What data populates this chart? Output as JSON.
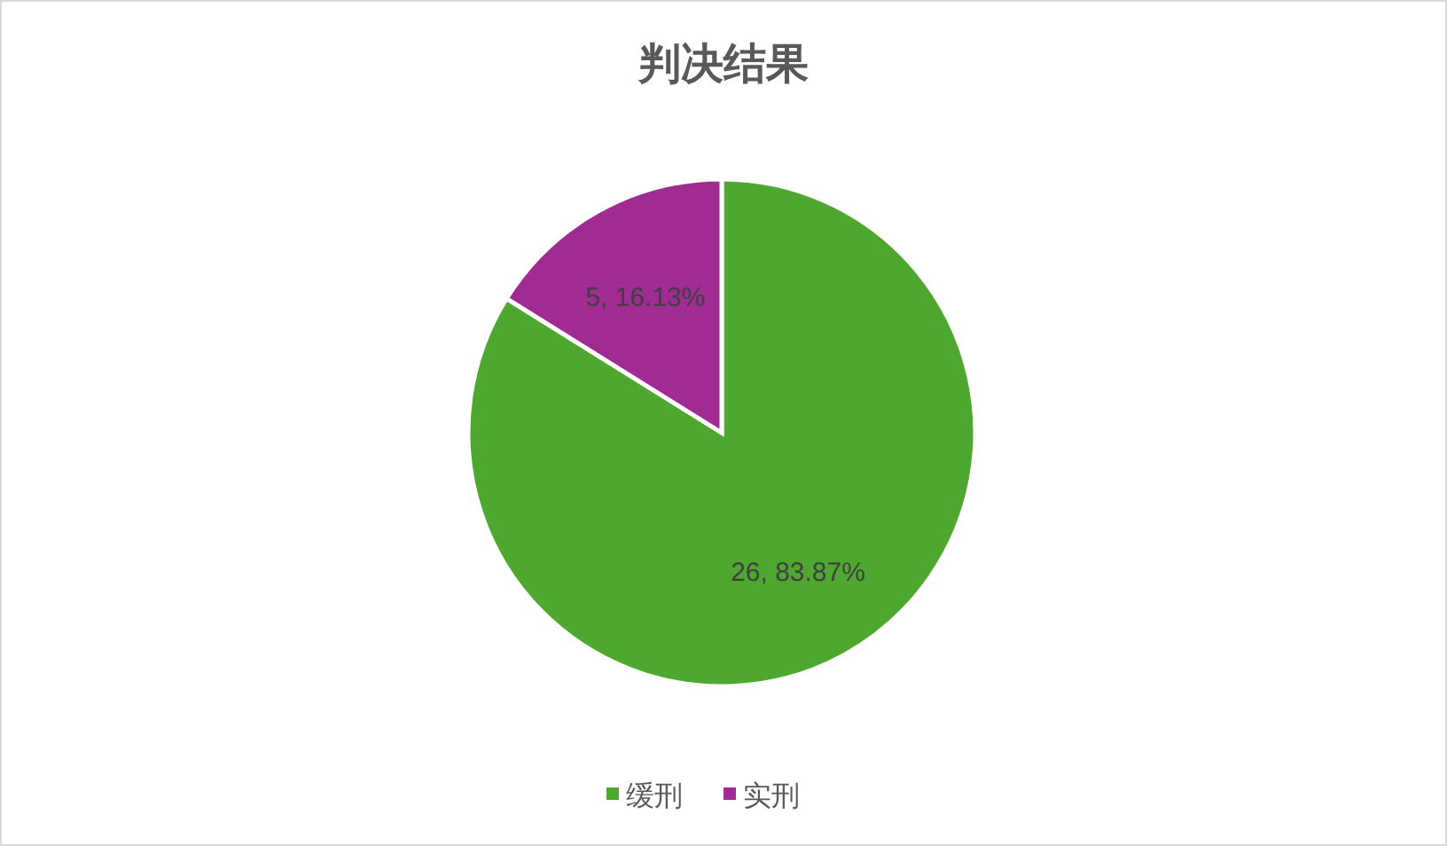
{
  "chart_data": {
    "type": "pie",
    "title": "判决结果",
    "categories": [
      "缓刑",
      "实刑"
    ],
    "values": [
      26,
      5
    ],
    "colors": [
      "#4ea72e",
      "#a02b93"
    ],
    "value_labels": [
      "26, 83.87%",
      "5, 16.13%"
    ],
    "legend": "bottom"
  }
}
